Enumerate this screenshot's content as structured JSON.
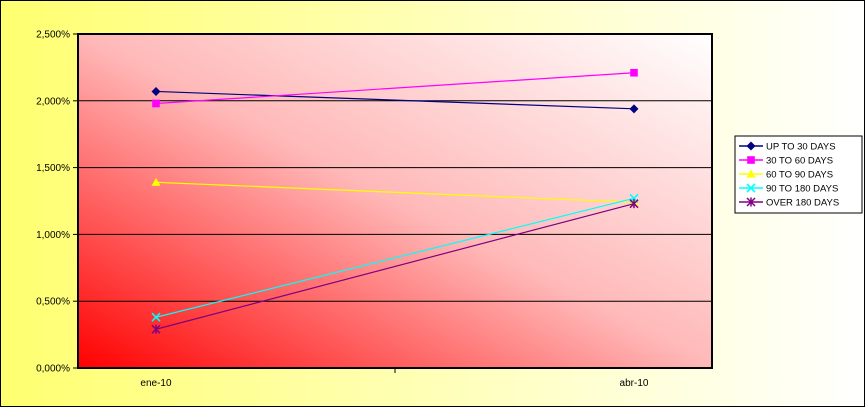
{
  "chart_data": {
    "type": "line",
    "title": "",
    "xlabel": "",
    "ylabel": "",
    "categories": [
      "ene-10",
      "abr-10"
    ],
    "ylim": [
      0,
      2.5
    ],
    "y_ticks": [
      "0,000%",
      "0,500%",
      "1,000%",
      "1,500%",
      "2,000%",
      "2,500%"
    ],
    "grid": "horizontal",
    "legend_position": "right",
    "series": [
      {
        "name": "UP TO 30 DAYS",
        "values": [
          2.07,
          1.94
        ],
        "color": "#000080",
        "marker": "diamond"
      },
      {
        "name": "30 TO 60 DAYS",
        "values": [
          1.98,
          2.21
        ],
        "color": "#FF00FF",
        "marker": "square"
      },
      {
        "name": "60 TO 90 DAYS",
        "values": [
          1.39,
          1.24
        ],
        "color": "#FFFF00",
        "marker": "triangle"
      },
      {
        "name": "90 TO 180 DAYS",
        "values": [
          0.38,
          1.27
        ],
        "color": "#00FFFF",
        "marker": "x"
      },
      {
        "name": "OVER 180 DAYS",
        "values": [
          0.29,
          1.23
        ],
        "color": "#800080",
        "marker": "star"
      }
    ]
  }
}
